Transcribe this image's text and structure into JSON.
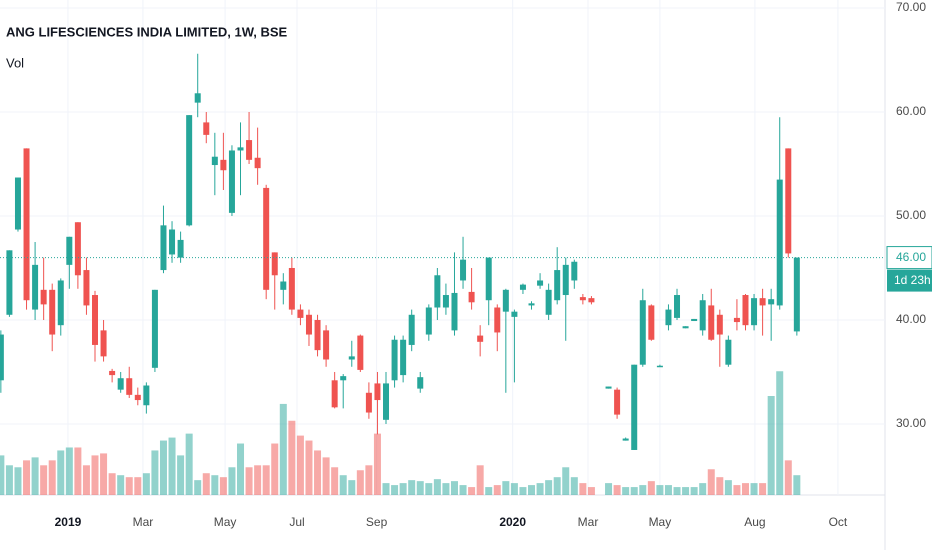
{
  "chart_data": {
    "type": "candlestick",
    "title": "ANG LIFESCIENCES INDIA LIMITED, 1W, BSE",
    "volume_label": "Vol",
    "up_color": "#26a69a",
    "down_color": "#ef5350",
    "grid": true,
    "open": [
      34.2,
      40.5,
      48.7,
      56.5,
      41.0,
      42.9,
      42.9,
      39.5,
      45.3,
      49.4,
      44.8,
      42.4,
      39.0,
      35.1,
      33.3,
      34.4,
      32.8,
      31.8,
      35.4,
      44.8,
      46.3,
      46.0,
      49.1,
      60.9,
      59.0,
      54.9,
      55.4,
      50.3,
      56.3,
      57.3,
      55.6,
      52.7,
      46.5,
      42.9,
      45.0,
      41.0,
      40.5,
      40.0,
      39.0,
      34.2,
      34.2,
      36.2,
      38.5,
      33.0,
      33.9,
      30.4,
      34.2,
      34.7,
      37.6,
      33.4,
      38.6,
      41.2,
      41.2,
      39.0,
      43.8,
      42.7,
      38.5,
      41.9,
      41.2,
      40.8,
      40.3,
      42.9,
      41.4,
      43.3,
      40.5,
      41.9,
      42.4,
      43.8,
      42.2,
      42.1,
      null,
      33.4,
      33.3,
      28.4,
      27.5,
      35.7,
      41.4,
      35.5,
      39.5,
      40.2,
      39.2,
      39.9,
      39.0,
      41.4,
      40.5,
      35.7,
      40.2,
      42.4,
      39.5,
      42.1,
      41.5,
      41.4,
      56.5,
      38.9
    ],
    "high": [
      39.0,
      46.7,
      53.7,
      56.5,
      47.5,
      46.0,
      43.5,
      44.0,
      48.0,
      49.4,
      46.0,
      42.8,
      40.0,
      35.3,
      35.0,
      35.5,
      33.5,
      34.0,
      42.9,
      51.0,
      49.5,
      48.5,
      59.7,
      65.6,
      60.0,
      58.0,
      58.0,
      56.8,
      59.0,
      60.0,
      58.5,
      53.0,
      46.5,
      44.5,
      46.0,
      41.5,
      41.0,
      40.5,
      39.5,
      35.0,
      34.8,
      38.0,
      38.6,
      34.0,
      35.0,
      35.0,
      38.5,
      38.5,
      41.0,
      35.0,
      41.5,
      45.0,
      43.5,
      46.5,
      48.0,
      45.0,
      39.5,
      46.0,
      41.5,
      43.0,
      41.0,
      43.5,
      41.8,
      44.5,
      43.5,
      47.0,
      46.0,
      45.8,
      42.5,
      42.3,
      null,
      33.6,
      33.5,
      28.7,
      35.7,
      43.0,
      41.5,
      35.7,
      41.5,
      43.0,
      39.4,
      40.1,
      42.5,
      43.0,
      41.0,
      38.5,
      42.0,
      42.5,
      42.5,
      43.0,
      43.0,
      59.5,
      56.5,
      46.0
    ],
    "low": [
      33.0,
      40.3,
      48.5,
      41.0,
      40.0,
      40.0,
      37.0,
      38.5,
      43.0,
      43.0,
      40.5,
      36.0,
      36.0,
      34.0,
      33.0,
      32.5,
      31.8,
      31.0,
      35.0,
      44.5,
      45.5,
      45.5,
      49.0,
      59.5,
      57.0,
      52.0,
      52.5,
      50.0,
      52.0,
      55.0,
      53.0,
      42.0,
      41.0,
      41.5,
      40.5,
      39.5,
      37.5,
      36.5,
      35.5,
      31.5,
      31.5,
      35.5,
      35.0,
      30.5,
      29.0,
      30.0,
      33.5,
      34.0,
      37.0,
      33.0,
      38.0,
      40.0,
      40.5,
      38.5,
      43.0,
      41.0,
      36.5,
      39.5,
      37.0,
      33.0,
      34.0,
      42.5,
      41.0,
      43.0,
      40.0,
      41.5,
      38.0,
      43.0,
      41.5,
      41.5,
      null,
      33.4,
      30.5,
      28.4,
      27.5,
      35.5,
      38.0,
      35.5,
      39.0,
      40.0,
      39.2,
      39.9,
      38.5,
      38.0,
      35.5,
      35.5,
      39.0,
      39.0,
      39.0,
      38.5,
      38.0,
      41.0,
      46.0,
      38.5
    ],
    "close": [
      38.6,
      46.7,
      53.7,
      41.9,
      45.3,
      41.5,
      38.6,
      43.8,
      48.0,
      44.3,
      41.4,
      37.6,
      36.5,
      34.7,
      34.4,
      32.8,
      32.3,
      33.7,
      42.9,
      49.1,
      48.7,
      47.7,
      59.7,
      61.8,
      57.8,
      55.7,
      54.4,
      56.3,
      56.6,
      55.4,
      54.6,
      42.9,
      44.3,
      43.7,
      41.0,
      40.2,
      38.6,
      37.1,
      36.2,
      31.6,
      34.6,
      36.5,
      35.2,
      31.1,
      32.3,
      33.9,
      38.1,
      38.1,
      40.5,
      34.5,
      41.2,
      44.3,
      42.4,
      42.6,
      45.8,
      41.7,
      37.9,
      46.0,
      38.8,
      42.9,
      40.8,
      43.4,
      41.6,
      43.8,
      42.9,
      44.8,
      45.3,
      45.6,
      41.9,
      41.7,
      null,
      33.6,
      30.9,
      28.6,
      35.7,
      41.9,
      38.1,
      35.6,
      41.0,
      42.4,
      39.4,
      40.1,
      41.9,
      38.1,
      38.6,
      38.1,
      39.8,
      39.5,
      42.1,
      41.4,
      42.0,
      53.5,
      46.4,
      46.0
    ],
    "volume": [
      40,
      30,
      28,
      35,
      38,
      30,
      35,
      45,
      48,
      48,
      30,
      40,
      42,
      22,
      20,
      18,
      18,
      22,
      45,
      55,
      58,
      40,
      62,
      15,
      22,
      20,
      18,
      28,
      52,
      28,
      30,
      30,
      52,
      92,
      75,
      60,
      55,
      45,
      38,
      28,
      20,
      15,
      25,
      30,
      62,
      12,
      10,
      12,
      15,
      14,
      12,
      16,
      12,
      14,
      10,
      8,
      30,
      8,
      10,
      14,
      12,
      8,
      10,
      12,
      15,
      18,
      28,
      18,
      12,
      8,
      null,
      12,
      10,
      8,
      8,
      10,
      14,
      10,
      10,
      8,
      8,
      8,
      12,
      26,
      18,
      15,
      10,
      12,
      12,
      12,
      100,
      125,
      35,
      20
    ],
    "volume_ylim": [
      0,
      500
    ],
    "xlim": [
      -0.1,
      103.3
    ],
    "xticks": [
      {
        "value": 7.84,
        "label": "2019"
      },
      {
        "value": 16.6,
        "label": "Mar"
      },
      {
        "value": 26.2,
        "label": "May"
      },
      {
        "value": 34.6,
        "label": "Jul"
      },
      {
        "value": 43.9,
        "label": "Sep"
      },
      {
        "value": 59.8,
        "label": "2020"
      },
      {
        "value": 68.6,
        "label": "Mar"
      },
      {
        "value": 77.0,
        "label": "May"
      },
      {
        "value": 88.1,
        "label": "Aug"
      },
      {
        "value": 97.8,
        "label": "Oct"
      }
    ],
    "ylim": [
      23.17,
      70.77
    ],
    "yticks": [
      {
        "value": 70,
        "label": "70.00"
      },
      {
        "value": 60,
        "label": "60.00"
      },
      {
        "value": 50,
        "label": "50.00"
      },
      {
        "value": 40,
        "label": "40.00"
      },
      {
        "value": 30,
        "label": "30.00"
      }
    ],
    "last_price": {
      "value": 46,
      "label": "46.00"
    },
    "countdown": "1d 23h"
  }
}
